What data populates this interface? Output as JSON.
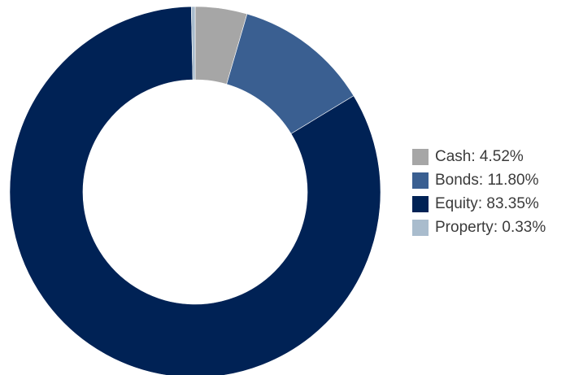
{
  "chart_data": {
    "type": "pie",
    "variant": "donut",
    "title": "",
    "slices": [
      {
        "label": "Cash",
        "value": 4.52,
        "display": "4.52%",
        "color": "#a6a6a6"
      },
      {
        "label": "Bonds",
        "value": 11.8,
        "display": "11.80%",
        "color": "#3a5f91"
      },
      {
        "label": "Equity",
        "value": 83.35,
        "display": "83.35%",
        "color": "#002255"
      },
      {
        "label": "Property",
        "value": 0.33,
        "display": "0.33%",
        "color": "#a9bccd"
      }
    ],
    "legend_position": "right"
  }
}
